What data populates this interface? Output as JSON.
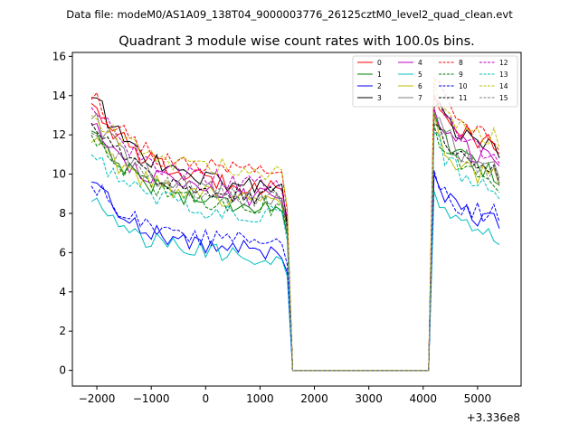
{
  "header": {
    "data_file": "Data file: modeM0/AS1A09_138T04_9000003776_26125cztM0_level2_quad_clean.evt"
  },
  "chart_data": {
    "type": "line",
    "title": "Quadrant 3 module wise count rates with 100.0s bins.",
    "xlabel": "",
    "ylabel": "",
    "x_offset_label": "+3.336e8",
    "xlim": [
      -2450,
      5800
    ],
    "ylim": [
      -0.8,
      16.2
    ],
    "xticks": [
      -2000,
      -1000,
      0,
      1000,
      2000,
      3000,
      4000,
      5000
    ],
    "xtick_labels": [
      "−2000",
      "−1000",
      "0",
      "1000",
      "2000",
      "3000",
      "4000",
      "5000"
    ],
    "yticks": [
      0,
      2,
      4,
      6,
      8,
      10,
      12,
      14,
      16
    ],
    "ytick_labels": [
      "0",
      "2",
      "4",
      "6",
      "8",
      "10",
      "12",
      "14",
      "16"
    ],
    "grid": false,
    "legend_location": "upper-right",
    "segments": [
      {
        "start": -2100,
        "step": 100,
        "count": 37
      },
      {
        "start": 1600,
        "step": 100,
        "count": 25
      },
      {
        "start": 4100,
        "step": 100,
        "count": 14
      }
    ],
    "series": [
      {
        "name": "0",
        "color": "#ff0000",
        "dash": "solid",
        "start": 13.6,
        "plateau": 9.3,
        "drop": 7.6,
        "peak": 14.2,
        "end": 11.2,
        "tail": 7.8
      },
      {
        "name": "1",
        "color": "#008000",
        "dash": "solid",
        "start": 12.2,
        "plateau": 8.3,
        "drop": 6.9,
        "peak": 13.0,
        "end": 9.8,
        "tail": 6.9
      },
      {
        "name": "2",
        "color": "#0000ff",
        "dash": "solid",
        "start": 9.6,
        "plateau": 6.0,
        "drop": 5.0,
        "peak": 9.6,
        "end": 7.4,
        "tail": 4.8
      },
      {
        "name": "3",
        "color": "#000000",
        "dash": "solid",
        "start": 13.9,
        "plateau": 9.3,
        "drop": 7.4,
        "peak": 13.8,
        "end": 11.2,
        "tail": 7.9
      },
      {
        "name": "4",
        "color": "#bf00bf",
        "dash": "solid",
        "start": 12.5,
        "plateau": 8.7,
        "drop": 7.2,
        "peak": 13.5,
        "end": 10.6,
        "tail": 7.2
      },
      {
        "name": "5",
        "color": "#00bfbf",
        "dash": "solid",
        "start": 8.6,
        "plateau": 5.7,
        "drop": 4.8,
        "peak": 9.0,
        "end": 6.8,
        "tail": 4.9
      },
      {
        "name": "6",
        "color": "#bfbf00",
        "dash": "solid",
        "start": 11.6,
        "plateau": 8.6,
        "drop": 7.2,
        "peak": 12.6,
        "end": 9.6,
        "tail": 6.8
      },
      {
        "name": "7",
        "color": "#808080",
        "dash": "solid",
        "start": 12.8,
        "plateau": 8.8,
        "drop": 7.3,
        "peak": 13.3,
        "end": 10.2,
        "tail": 7.1
      },
      {
        "name": "8",
        "color": "#ff0000",
        "dash": "dashed",
        "start": 13.8,
        "plateau": 9.9,
        "drop": 8.1,
        "peak": 15.0,
        "end": 11.4,
        "tail": 8.0
      },
      {
        "name": "9",
        "color": "#008000",
        "dash": "dashed",
        "start": 12.0,
        "plateau": 8.3,
        "drop": 7.0,
        "peak": 12.4,
        "end": 9.5,
        "tail": 6.7
      },
      {
        "name": "10",
        "color": "#0000ff",
        "dash": "dashed",
        "start": 9.4,
        "plateau": 6.5,
        "drop": 5.4,
        "peak": 9.8,
        "end": 7.8,
        "tail": 5.0
      },
      {
        "name": "11",
        "color": "#000000",
        "dash": "dashed",
        "start": 12.6,
        "plateau": 8.8,
        "drop": 7.3,
        "peak": 13.0,
        "end": 10.0,
        "tail": 7.0
      },
      {
        "name": "12",
        "color": "#bf00bf",
        "dash": "dashed",
        "start": 13.4,
        "plateau": 9.4,
        "drop": 7.8,
        "peak": 14.0,
        "end": 10.8,
        "tail": 7.6
      },
      {
        "name": "13",
        "color": "#00bfbf",
        "dash": "dashed",
        "start": 11.0,
        "plateau": 7.9,
        "drop": 6.6,
        "peak": 12.0,
        "end": 9.2,
        "tail": 6.5
      },
      {
        "name": "14",
        "color": "#bfbf00",
        "dash": "dashed",
        "start": 13.0,
        "plateau": 10.1,
        "drop": 8.3,
        "peak": 14.4,
        "end": 11.6,
        "tail": 8.2
      },
      {
        "name": "15",
        "color": "#808080",
        "dash": "dashed",
        "start": 12.1,
        "plateau": 8.7,
        "drop": 7.1,
        "peak": 12.7,
        "end": 9.9,
        "tail": 7.0
      }
    ]
  }
}
